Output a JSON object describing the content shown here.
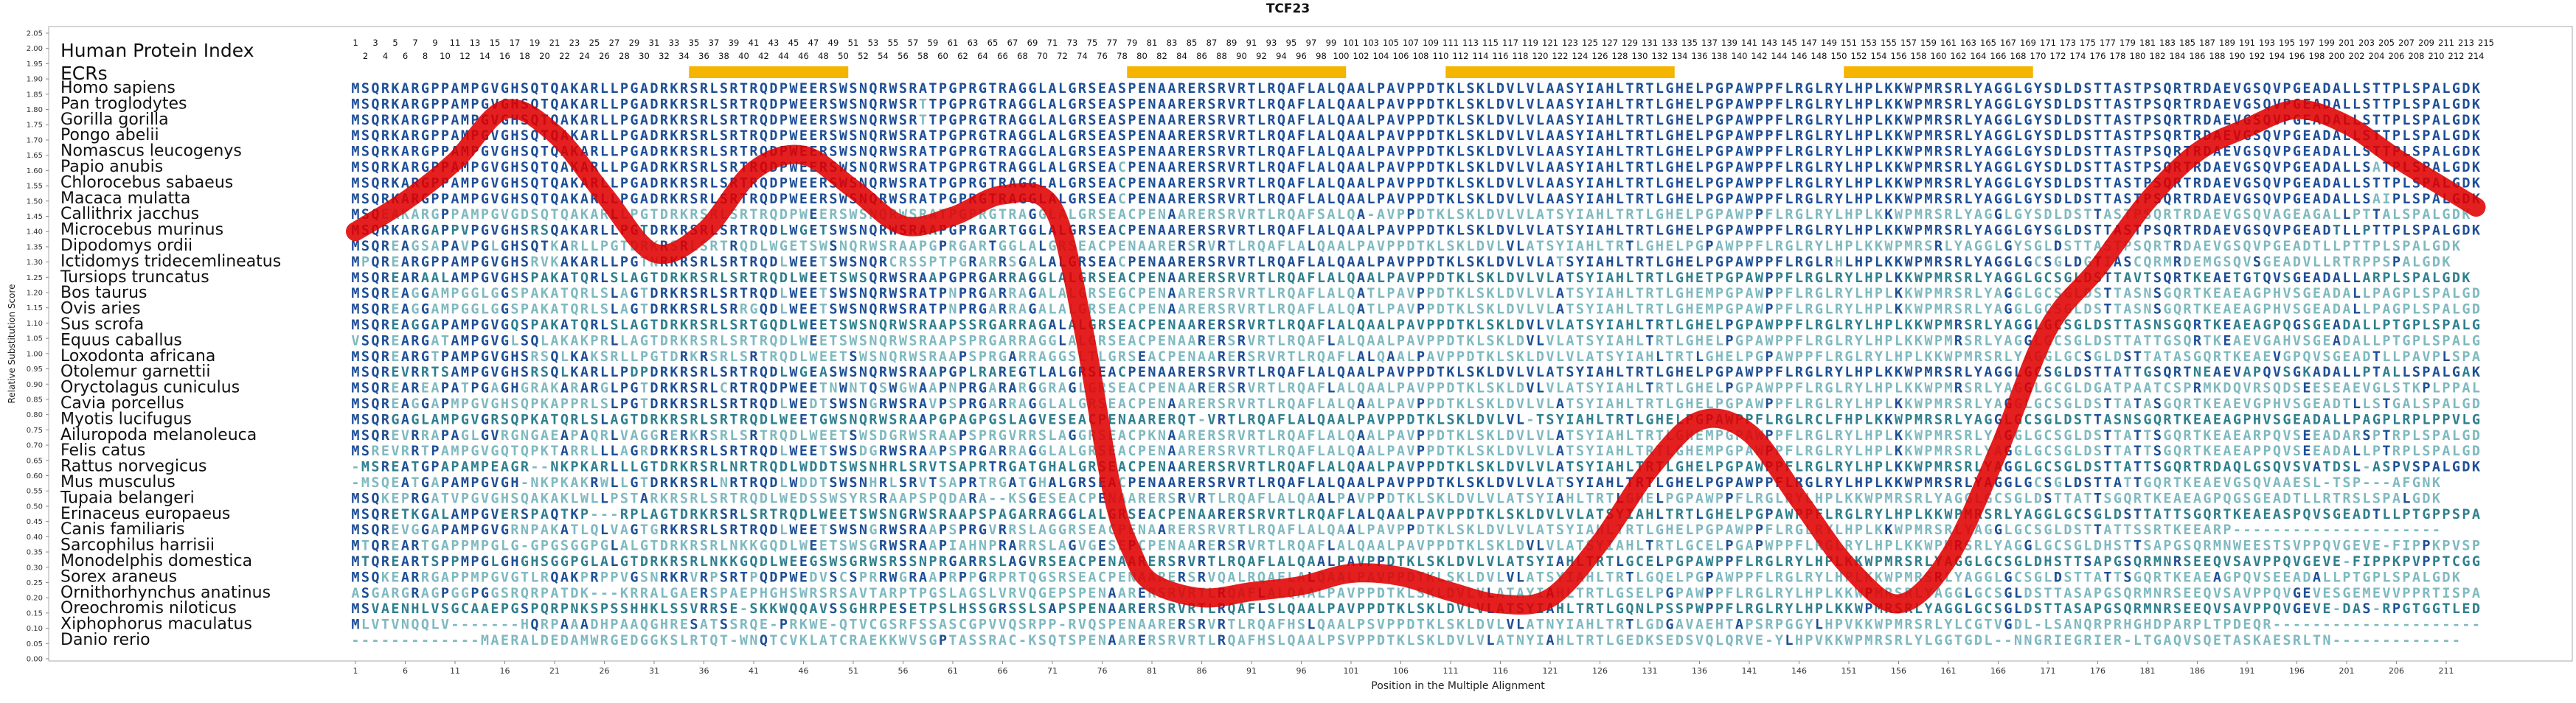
{
  "chart_data": {
    "type": "line",
    "title": "TCF23",
    "xlabel": "Position in the Multiple Alignment",
    "ylabel": "Relative Substitution Score",
    "row_header_protein_index": "Human Protein Index",
    "row_header_ecrs": "ECRs",
    "alignment_length": 214,
    "human_protein_length": 215,
    "xticks": [
      1,
      6,
      11,
      16,
      21,
      26,
      31,
      36,
      41,
      46,
      51,
      56,
      61,
      66,
      71,
      76,
      81,
      86,
      91,
      96,
      101,
      106,
      111,
      116,
      121,
      126,
      131,
      136,
      141,
      146,
      151,
      156,
      161,
      166,
      171,
      176,
      181,
      186,
      191,
      196,
      201,
      206,
      211
    ],
    "ylim": [
      0,
      2.05
    ],
    "yticks": [
      "0.00",
      "0.05",
      "0.10",
      "0.15",
      "0.20",
      "0.25",
      "0.30",
      "0.35",
      "0.40",
      "0.45",
      "0.50",
      "0.55",
      "0.60",
      "0.65",
      "0.70",
      "0.75",
      "0.80",
      "0.85",
      "0.90",
      "0.95",
      "1.00",
      "1.05",
      "1.10",
      "1.15",
      "1.20",
      "1.25",
      "1.30",
      "1.35",
      "1.40",
      "1.45",
      "1.50",
      "1.55",
      "1.60",
      "1.65",
      "1.70",
      "1.75",
      "1.80",
      "1.85",
      "1.90",
      "1.95",
      "2.00",
      "2.05"
    ],
    "ecr_regions": [
      [
        35,
        50
      ],
      [
        79,
        100
      ],
      [
        111,
        133
      ],
      [
        151,
        169
      ]
    ],
    "curve": {
      "x": [
        1,
        6,
        11,
        16,
        21,
        26,
        31,
        36,
        41,
        46,
        51,
        56,
        61,
        66,
        71,
        74,
        77,
        79,
        81,
        86,
        91,
        96,
        101,
        106,
        111,
        116,
        121,
        126,
        131,
        136,
        141,
        146,
        151,
        156,
        161,
        166,
        171,
        176,
        181,
        186,
        191,
        196,
        201,
        206,
        211,
        214
      ],
      "y": [
        1.4,
        1.5,
        1.63,
        1.8,
        1.72,
        1.52,
        1.33,
        1.4,
        1.6,
        1.65,
        1.54,
        1.42,
        1.45,
        1.52,
        1.48,
        1.1,
        0.55,
        0.35,
        0.25,
        0.2,
        0.22,
        0.24,
        0.28,
        0.27,
        0.22,
        0.18,
        0.2,
        0.38,
        0.62,
        0.78,
        0.74,
        0.52,
        0.3,
        0.18,
        0.33,
        0.68,
        1.08,
        1.28,
        1.5,
        1.66,
        1.74,
        1.8,
        1.75,
        1.64,
        1.54,
        1.48
      ]
    },
    "species": [
      "Homo sapiens",
      "Pan troglodytes",
      "Gorilla gorilla",
      "Pongo abelii",
      "Nomascus leucogenys",
      "Papio anubis",
      "Chlorocebus sabaeus",
      "Macaca mulatta",
      "Callithrix jacchus",
      "Microcebus murinus",
      "Dipodomys ordii",
      "Ictidomys tridecemlineatus",
      "Tursiops truncatus",
      "Bos taurus",
      "Ovis aries",
      "Sus scrofa",
      "Equus caballus",
      "Loxodonta africana",
      "Otolemur garnettii",
      "Oryctolagus cuniculus",
      "Cavia porcellus",
      "Myotis lucifugus",
      "Ailuropoda melanoleuca",
      "Felis catus",
      "Rattus norvegicus",
      "Mus musculus",
      "Tupaia belangeri",
      "Erinaceus europaeus",
      "Canis familiaris",
      "Sarcophilus harrisii",
      "Monodelphis domestica",
      "Sorex araneus",
      "Ornithorhynchus anatinus",
      "Oreochromis niloticus",
      "Xiphophorus maculatus",
      "Danio rerio"
    ],
    "sequences": [
      "MSQRKARGPPAMPGVGHSQTQAKARLLPGADRKRSRLSRTRQDPWEERSWSNQRWSRATPGPRGTRAGGLALGRSEASPENAARERSRVRTLRQAFLALQAALPAVPPDTKLSKLDVLVLAASYIAHLTRTLGHELPGPAWPPFLRGLRYLHPLKKWPMRSRLYAGGLGYSDLDSTTASTPSQRTRDAEVGSQVPGEADALLSTTPLSPALGDK",
      "MSQRKARGPPAMPGVGHSQTQAKARLLPGADRKRSRLSRTRQDPWEERSWSNQRWSRTTPGPRGTRAGGLALGRSEASPENAARERSRVRTLRQAFLALQAALPAVPPDTKLSKLDVLVLAASYIAHLTRTLGHELPGPAWPPFLRGLRYLHPLKKWPMRSRLYAGGLGYSDLDSTTASTPSQRTRDAEVGSQVPGEADALLSTTPLSPALGDK",
      "MSQRKARGPPAMPGVGHSQTQAKARLLPGADRKRSRLSRTRQDPWEERSWSNQRWSRTTPGPRGTRAGGLALGRSEASPENAARERSRVRTLRQAFLALQAALPAVPPDTKLSKLDVLVLAASYIAHLTRTLGHELPGPAWPPFLRGLRYLHPLKKWPMRSRLYAGGLGYSDLDSTTASTPSQRTRDAEVGSQVPGEADALLSTTPLSPALGDK",
      "MSQRKARGPPAMPGVGHSQTQAKARLLPGADRKRSRLSRTRQDPWEERSWSNQRWSRATPGPRGTRAGGLALGRSEASPENAARERSRVRTLRQAFLALQAALPAVPPDTKLSKLDVLVLAASYIAHLTRTLGHELPGPAWPPFLRGLRYLHPLKKWPMRSRLYAGGLGYSDLDSTTASTPSQRTRDAEVGSQVPGEADALLSTTPLSPALGDK",
      "MSQRKARGPPAMPGVGHSQTQAKARLLPGADRKRSRLSRTRQDPWEERSWSNQRWSRATPGPRGTRAGGLALGRSEASPENAARERSRVRTLRQAFLALQAALPAVPPDTKLSKLDVLVLAASYIAHLTRTLGHELPGPAWPPFLRGLRYLHPLKKWPMRSRLYAGGLGYSDLDSTTASTPSQRTRDAEVGSQVPGEADALLSTTPLSPALGDK",
      "MSQRKARGPPAMPGVGHSQTQAKARLLPGADRKRSRLSRTRQDPWEERSWSNQRWSRATPGPRGTRAGGLALGRSEACPENAARERSRVRTLRQAFLALQAALPAVPPDTKLSKLDVLVLAASYIAHLTRTLGHELPGPAWPPFLRGLRYLHPLKKWPMRSRLYAGGLGYSDLDSTTASTPSQRTRDAEVGSQVPGEADALLSATPLSPALGDK",
      "MSQRKARGPPAMPGVGHSQTQAKARLLPGADRKRSRLSRTRQDPWEERSWSNQRWSRATPGPRGTRAGGLALGRSEACPENAARERSRVRTLRQAFLALQAALPAVPPDTKLSKLDVLVLAASYIAHLTRTLGHELPGPAWPPFLRGLRYLHPLKKWPMRSRLYAGGLGYSDLDSTTASTPSQRTRDAEVGSQVPGEADALLSTTPLSPALGDK",
      "MSQRKARGPPAMPGVGHSQTQAKARLLPGADRKRSRLSRTRQDPWEERSWSNQRWSRATPGPRGTRAGGLALGRSEACPENAARERSRVRTLRQAFLALQAALPAVPPDTKLSKLDVLVLAASYIAHLTRTLGHELPGPAWPPFLRGLRYLHPLKKWPMRSRLYAGGLGYSDLDSTTASTPSQRTRDAEVGSQVPGEADALLSAIPLSPALGDK",
      "MSQEAKARGPPAMPGVGDSQTQAKARLLPGTDRKRSRLSRTRQDPWEERSWSNQRWSRATPGPRGTRAGGLALGRSEACPENAARERSRVRTLRQAFSALQA-AVPPDTKLSKLDVLVLATSYIAHLTRTLGHELPGPAWPPFLRGLRYLHPLKKWPMRSRLYAGGLGYSDLDSTTASTPSQRTRDAEVGSQVAGEAGALLPTTALSPALGDK",
      "MSQRKARGAPPVPGVGHSRSQAKARLLPGTDRKRSRLSRTRQDLWGETSWSNQRWSRAAPGPRGARTGGLALGRSEACPENAARERSRVRTLRQAFLALQAALPAVPPDTKLSKLDVLVLATSYIAHLTRTLGHELPGPAWPPFLRGLRYLHPLKKWPMRSRLYAGGLGYSGLDSTTASTPSQRTRDAEVGSQVPGEADTLLPTTPLSPALGDK",
      "MSQREAGSAPAVPGLGHSQTKARLLPGTDRKRSRLSRTRQDLWGETSWSNQRWSRAAPGPRGARTGGLALGRSEACPENAARERSRVRTLRQAFLALQAALPAVPPDTKLSKLDVLVLATSYIAHLTRTLGHELPGPAWPPFLRGLRYLHPLKKWPMRSRLYAGGLGYSGLDSTTASTPSQRTRDAEVGSQVPGEADTLLPTTPLSPALGDK",
      "MPQREARGPPAMPGVGHSRVKAKARLLPGTNRKRSRLSRTRQDLWEETSWSNQRCRSSPTPGRARRSGALALGRSEACPENAARERSRVRTLRQAFLALQAALPAVPPDTKLSKLDVLVLATSYIAHLTRTLGHELPGPAWPPFLRGLRHLHPLKKWPMRSRLYAGGLGCSGLDGTIASCQRMRDEMGSQVSGEADVLLRTRPPSPALGDK",
      "MSQREARAALAMPGVGHSPAKATQRLSLAGTDRKRSRLSRTRQDLWEETSWSQRWSRAAPGPRGARRAGGLALGRSEACPENAARERSRVRTLRQAFLALQAALPAVPPDTKLSKLDVLVLATSYIAHLTRTLGHETPGPAWPPFLRGLRYLHPLKKWPMRSRLYAGGLGCSGLDSTTAVTSQRTKEAETGTQVSGEADALLARPLSPALGDK",
      "MSQREAGGAMPGGLGGSPAKATQRLSLAGTDRKRSRLSRTRQDLWEETSWSNQRWSRATPNPRGARRAGALALGRSEGCPENAARERSRVRTLRQAFLALQATLPAVPPDTKLSKLDVLVLATSYIAHLTRTLGHEMPGPAWPPFLRGLRYLHPLKKWPMRSRLYAGGLGCSGLDSTTASNSGQRTKEAEAGPHVSGEADALLPAGPLSPALGDK",
      "MSQREAGGAMPGGLGGSPAKATQRLSLAGTDRKRSRLSRRGQDLWEETSWSNQRWSRATPNPRGARRAGALALGRSEACPENAARERSRVRTLRQAFLALQATLPAVPPDTKLSKLDVLVLATSYIAHLTRTLGHEMPGPAWPPFLRGLRYLHPLKKWPMRSRLYAGGLGCSGLDSTTASNSGQRTKEAEAGPHVSGEADALLPAGPLSPALGDK",
      "MSQREAGGAPAMPGVGQSPAKATQRLSLAGTDRKRSRLSRTGQDLWEETSWSNQRWSRAAPSSRGARRAGALALGRSEACPENAARERSRVRTLRQAFLALQAALPAVPPDTKLSKLDVLVLATSYIAHLTRTLGHELPGPAWPPFLRGLRYLHPLKKWPMRSRLYAGGLGCSGLDSTTASNSGQRTKEAEAGPQGSGEADALLPTGPLSPALGDK",
      "VSQREARGATAMPGVGLSQLAKAKPRLLAGTDRKRSRLSRTRQDLWEETSWSNQRWSRAAPSPRGARRAGGLALGRSEACPENAARERSRVRTLRQAFLALQAALPAVPPDTKLSKLDVLVLATSYIAHLTRTLGHELPGPAWPPFLRGLRYLHPLKKWPMRSRLYAGGLGCSGLDSTTATTGSQRTKEAEVGAHVSGEADALLPTGPLSPALGDK",
      "MSQREARGTPAMPGVGHSRSQLKAKSRLLPGTDRKRSRLSRTRQDLWEETSWSNQRWSRAAPSPRGARRAGGSLTLGRSEACPENAARERSRVRTLRQAFLALQAALPAVPPDTKLSKLDVLVLATSYIAHLTRTLGHELPGPAWPPFLRGLRYLHPLKKWPMRSRLYAGGLGCSGLDSTTATASGQRTKEAEVGPQVSGEADTLLPAVPLSPALGDK",
      "MSQREVRRTSAMPGVGHSRSQLKARLLPDPDRKRSRLSRTRQDLWGEASWSNQRWSRAAPGPLRAREGTLALGRSEACPENAARERSRVRTLRQAFLALQAALPAVPPDTKLSKLDVLVLATSYIAHLTRTLGHELPGPAWPPFLRGLRYLHPLKKWPMRSRLYAGGLGCSGLDSTTATTGSQRTNEAEVAPQVSGKADALLPTALLSPALGAK",
      "MSQREAREAPATPGAGHGRAKARARGLPGTDRKRSRLCRTRQDPWEETNWNTQSWGWAAPNPRGARARGGRAGLGRSEACPENAARERSRVRTLRQAFLALQAALPAVPPDTKLSKLDVLVLATSYIAHLTRTLGHELPGPAWPPFLRGLRYLHPLKKWPMRSRLYAGGLGCGLDGATPAATCSPRMKDQVRSQDSEESEAEVGLSTKPLPPALGDK",
      "MSQREAGGAPMPGVGHSQPKAPPRLSLPGTDRKRSRLSRTRQDLWEDTSWSNGRWSRAVPSPRGARRAGGLALGRSEACPENAARERSRVRTLRQAFLALQAALPAVPPDTKLSKLDVLVLATSYIAHLTRTLGHELPGPAWPPFLRGLRYLHPLKKWPMRSRLYAGGLGCSGLDSTTATASGQRTKEAEVGPHVSGEADTLLSTGALSPALGDK",
      "MSQRGAGLAMPGVGRSQPKATQRLSLAGTDRKRSRLSRTRQDLWEETGWSNQRWSRAAPGPAGPGSLAGVESEACPENAARERQT-VRTLRQAFLALQAALPAVPPDTKLSKLDVLVL-TSYIAHLTRTLGHELPGPAWPPFLRGLRCLFHPLKKWPMRSRLYAGGLGCSGLDSTTASNSGQRTKEAEAGPHVSGEADALLPAGPLRPLPPVLGDK",
      "MSQREVRRAPAGLGVRGNGAEAPAQRLVAGGRERKRSRLSRTRQDLWEETSWSDGRWSRAAPSPRGVRRSLAGGRSEACPKNAARERSRVRTLRQAFLALQAALPAVPPDTKLSKLDVLVLATSYIAHLTRTLGHEMPGPAWPPFLRGLRYLHPLKKWPMRSRLYAGGLGCSGLDSTTATTSGQRTKEAEARPQVSEEADARSPTRPLSPALGDK",
      "MSREVRRTPAMPGVGQTQPKTARRLLLAGRDRKRSRLSRTRQDLWEETSWSDGRWSRAAPSPRGARRAGGLALGRSEACPENAARERSRVRTLRQAFLALQAALPAVPPDTKLSKLDVLVLATSYIAHLTRTLGHEMPGPAWPPFLRGLRYLHPLKKWPMRSRLYAGGLGCSGLDSTTATTSGQRTKEAEAPPQVSEEADALLPTRPLSPALGDK",
      "-MSREATGPAPAMPEAGR--NKPKARLLLGTDRKRSRLNRTRQDLWDDTSWSNHRLSRVTSAPRTRGATGHALGRSEACPENAARERSRVRTLRQAFLALQAALPAVPPDTKLSKLDVLVLATSYIAHLTRTLGHELPGPAWPPFLRGLRYLHPLKKWPMRSRLYAGGLGCSGLDSTTATTSGQRTRDAQLGSQVSVATDSL-ASPVSPALGDK",
      "-MSQEATGAPAMPGVGH-NKPKAKRWLLGTDRKRSRLNRTRQDLWDDTSWSNHRLSRVTSAPRTRGATGHALGRSEACPENAARERSRVRTLRQAFLALQAALPAVPPDTKLSKLDVLVLATSYIAHLTRTLGHELPGPAWPPFLRGLRYLHPLKKWPMRSRLYAGGLGCSGLDSTTATTGQRTKEAEVGSQVAAESL-TSP---AFGNK",
      "MSQKEPRGATVPGVGHSQAKAKLWLLPSTARKRSRLSRTRQDLWEDSSWSYRSRAAPSPQDARA--KSGESEACPENAARERSRVRTLRQAFLALQAALPAVPPDTKLSKLDVLVLATSYIAHLTRTLGHELPGPAWPPFLRGLRYLHPLKKWPMRSRLYAGGLGCSGLDSTTATTSGQRTKEAEAGPQGSGEADTLLRTRSLSPALGDK",
      "MSQRETKGALAMPGVERSPAQTKP---RPLAGTDRKRSRLSRTRQDLWEETSWSNGRWSRAAPSPAGARRAGGLALGRSEACPENAARERSRVRTLRQAFLALQAALPAVPPDTKLSKLDVLVLATSYIAHLTRTLGHELPGPAWPPFLRGLRYLHPLKKWPMRSRLYAGGLGCSGLDSTTATTSGQRTKEAEASPQVSGEADTLLPTGPPSPALGDK",
      "MSQREVGGAPAMPGVGRNPAKATLQLVAGTGRKRSRLSRTRQDLWEETSWSNGRWSRAAPSPRGVRRSLAGGRSEACPENAARERSRVRTLRQAFLALQAALPAVPPDTKLSKLDVLVLATSYIAHLTRTLGHELPGPAWPPFLRGLRYLHPLKKWPMRSRLYAGGLGCSGLDSTTATTSSRTKEEARP---------------------",
      "MTQREARTGAPPMPGLG-GPGSGGPGLALGTDRKRSRLNKKGQDLWEETSWSGRWSRAAPIAHNPRARRSLAGVGESEPCPENAARERSRVRTLRQAFLALQAALPAVPPDTKLSKLDVLVLATSYIAHLTRTLGCELPGAPWPPFLRGLRYLHPLKKWPMRSRLYAGGLGCSGLDHSTTSAPGSQRMNWEESTSVPPQVGEVE-FIPPKPVSPTCIGK",
      "MTQREARTSPPMPGLGHGHSGGPGLALGTDRKRSRLNKKGQDLWEEGSWSGRWSRSSNPRGARRSLAGVRSEACPENAARERSRVRTLRQAFLALQAALPAVPPDTKLSKLDVLVLATSYIAHLTRTLGCELPGPAWPPFLRGLRYLHPLKKWPMRSRLYAGGLGCSGLDHSTTSAPGSQRMNRSEEQVSAVPPQVGEVE-FIPPKPVPPTCGGK",
      "MSQKEARRGAPPMPGVGTLRQAKPRPPVGSNRKRVRPSRTPQDPWEDVSCSPRRWGRAAPRPPGRPRTQGSRSEACPENAARERSRVQALRQAFLALQAALPAVPPDTKLSKLDVLVLATSYIAHLTRTLGQELPGPAWPPFLRGLRYLHPLKKWPMRSRLYAGGLGCSGLDSTTATTSGQRTKEAEAGPQVSEEADALLPTGPLSPALGDK",
      "ASGARGRAGPGGPGGSRQRPATDK---KRRALGAERSPAEPHGHSWRSRSAVTARPTPGSLAGSLVRVQGEPSPENAARERSRVRTLRQAFLALQAALPAVPPDTKLSKLDVLVLATAYIAHLTRTLGSELPGPAWPPFLRGLRYLHPLKKWPMRSRLYAGGLGCSGLDSTTASAPGSQRMNRSEEQVSAVPPQVGEVESGEMEVVPPRTISPALGDK",
      "MSVAENHLVSGCAAEPGSPQRPNKSPSSHHKLSSVRRSE-SKKWQQAVSSGHRPESETPSLHSSGRSSLSAPSPENAARERSRVRTLRQAFLSLQAALPAVPPDTKLSKLDVLVLATSYIAHLTRTLGQNLPSSPWPPFLRGLRYLHPLKKWPMRSRLYAGGLGCSGLDSTTASAPGSQRMNRSEEQVSAVPPQVGEVE-DAS-RPGTGGTLEDDE",
      "MLVTVNQQLV-------HQRPAAADHPAAQGHRESATSSRQE-PRKWE-QTVCGSRFSSASCGPVVQSRPP-RVQSPENAARERSRVRTLRQAFHSLQAALPSVPPDTKLSKLDVLVLATNYIAHLTRTLGDGAVAEHTAPSRPGGYLHPVKKWPMRSRLYLCGTVGDL-LSANQRPRHGHDPARPLTPDEQR---------------------",
      "-------------MAERALDEDAMWRGEDGGKSLRTQT-WNQTCVKLATCRAEKKWVSGPTASSRAC-KSQTSPENAARERSRVRTLRQAFHSLQAALPSVPPDTKLSKLDVLVLATNYIAHLTRTLGEDKSEDSVQLQRVE-YLHPVKKWPMRSRLYLGGTGDL--NNGRIEGRIER-LTGAQVSQETASKAESRLTN-------------"
    ],
    "colors": {
      "curve": "#e00000",
      "ecr": "#f5b400",
      "residue_conserved": "#1e4f96",
      "residue_mid": "#2f7f8f",
      "residue_low": "#7fb9c0",
      "axis": "#888888",
      "frame": "#aaaaaa"
    }
  }
}
